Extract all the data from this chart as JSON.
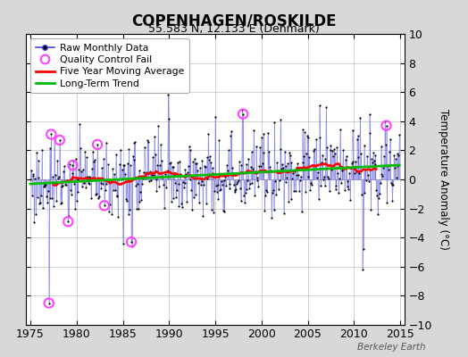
{
  "title": "COPENHAGEN/ROSKILDE",
  "subtitle": "55.583 N, 12.133 E (Denmark)",
  "ylabel": "Temperature Anomaly (°C)",
  "watermark": "Berkeley Earth",
  "xlim": [
    1974.5,
    2015.5
  ],
  "ylim": [
    -10,
    10
  ],
  "yticks": [
    -10,
    -8,
    -6,
    -4,
    -2,
    0,
    2,
    4,
    6,
    8,
    10
  ],
  "xticks": [
    1975,
    1980,
    1985,
    1990,
    1995,
    2000,
    2005,
    2010,
    2015
  ],
  "bg_color": "#d8d8d8",
  "plot_bg_color": "#ffffff",
  "line_color": "#4444dd",
  "line_alpha": 0.65,
  "dot_color": "#000000",
  "ma_color": "#ff0000",
  "trend_color": "#00bb00",
  "qc_color": "#ff44ff",
  "seed": 77
}
